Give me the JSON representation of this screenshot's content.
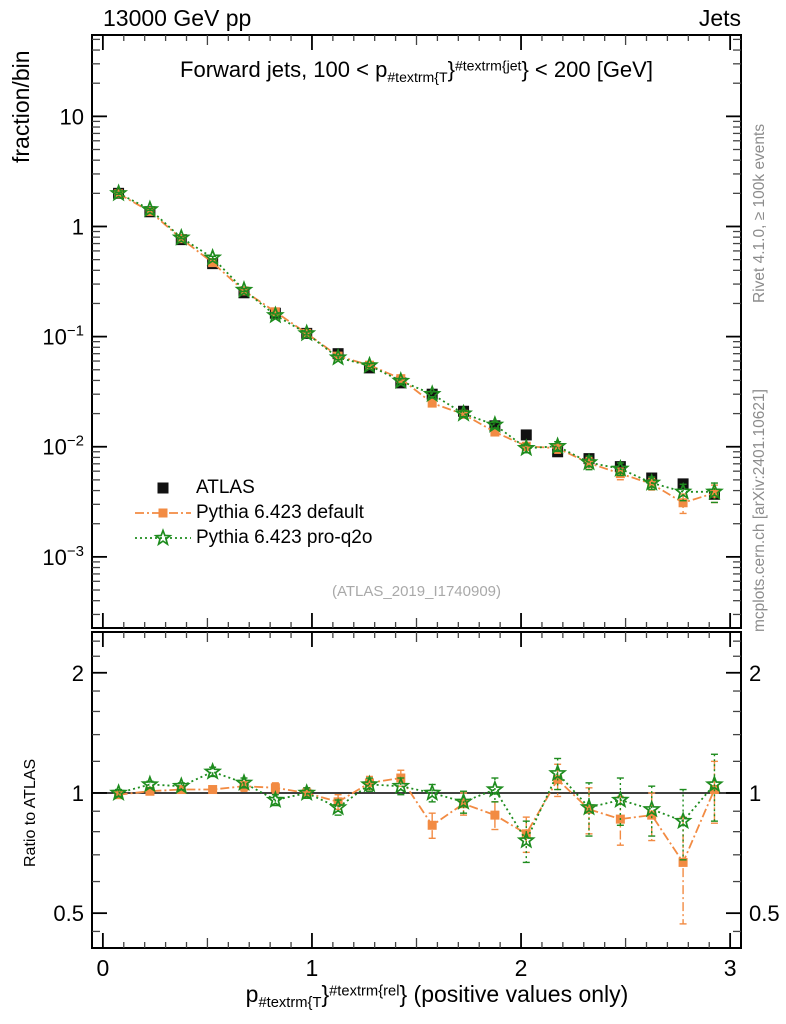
{
  "header": {
    "left": "13000 GeV pp",
    "right": "Jets"
  },
  "title": {
    "p1": "Forward jets, 100 < p",
    "sub": "#textrm{T",
    "b1": "}",
    "sup": "#textrm{jet",
    "b2": "}",
    "p2": " < 200 [GeV]"
  },
  "y_axis_title": "fraction/bin",
  "ratio_axis_title": "Ratio to ATLAS",
  "x_label": {
    "p1": "p",
    "sub": "#textrm{T",
    "b1": "}",
    "sup": "#textrm{rel",
    "b2": "}",
    "p2": " (positive values only)"
  },
  "watermark": "(ATLAS_2019_I1740909)",
  "side_notes": {
    "top": "Rivet 4.1.0, ≥ 100k events",
    "bottom": "mcplots.cern.ch [arXiv:2401.10621]"
  },
  "legend": [
    {
      "label": "ATLAS",
      "marker": "filled-square",
      "line": "none",
      "color": "#111111"
    },
    {
      "label": "Pythia 6.423 default",
      "marker": "filled-square",
      "line": "dash-dot",
      "color": "#f28b43"
    },
    {
      "label": "Pythia 6.423 pro-q2o",
      "marker": "open-star",
      "line": "dotted",
      "color": "#1e8c1e"
    }
  ],
  "colors": {
    "atlas": "#111111",
    "default": "#f28b43",
    "proq2o": "#1e8c1e",
    "frame": "#000000",
    "minor_tick": "#444444",
    "gray_text": "#8c8c8c",
    "watermark": "#a9a9a9"
  },
  "chart_data": {
    "type": "scatter",
    "description": "Two stacked panels: log-scale distribution (fraction/bin vs pT-rel) and log-scale ratio to ATLAS",
    "x": [
      0.075,
      0.225,
      0.375,
      0.525,
      0.675,
      0.825,
      0.975,
      1.125,
      1.275,
      1.425,
      1.575,
      1.725,
      1.875,
      2.025,
      2.175,
      2.325,
      2.475,
      2.625,
      2.775,
      2.925
    ],
    "x_axis": {
      "ticks": [
        0,
        1,
        2,
        3
      ],
      "tick_labels": [
        "0",
        "1",
        "2",
        "3"
      ],
      "range": [
        -0.052,
        3.052
      ],
      "minor_step": 0.1
    },
    "main_y_axis": {
      "scale": "log",
      "range": [
        0.000226,
        54.8
      ],
      "ticks": [
        {
          "v": 10,
          "base": "10",
          "exp": ""
        },
        {
          "v": 1,
          "base": "1",
          "exp": ""
        },
        {
          "v": 0.1,
          "base": "10",
          "exp": "−1"
        },
        {
          "v": 0.01,
          "base": "10",
          "exp": "−2"
        },
        {
          "v": 0.001,
          "base": "10",
          "exp": "−3"
        }
      ]
    },
    "ratio_y_axis": {
      "scale": "log",
      "range": [
        0.409,
        2.53
      ],
      "ticks": [
        {
          "v": 2,
          "label": "2"
        },
        {
          "v": 1,
          "label": "1"
        },
        {
          "v": 0.5,
          "label": "0.5"
        }
      ],
      "minor": [
        2.4,
        2.2,
        1.8,
        1.6,
        1.4,
        1.2,
        0.9,
        0.8,
        0.7,
        0.6,
        0.45
      ]
    },
    "series": [
      {
        "name": "ATLAS",
        "values": [
          2.0,
          1.36,
          0.76,
          0.46,
          0.25,
          0.163,
          0.107,
          0.07,
          0.052,
          0.038,
          0.03,
          0.021,
          0.0155,
          0.0128,
          0.009,
          0.0078,
          0.0066,
          0.0052,
          0.0046,
          0.0037
        ],
        "rel_err": [
          0.01,
          0.01,
          0.01,
          0.01,
          0.015,
          0.015,
          0.015,
          0.02,
          0.02,
          0.02,
          0.025,
          0.025,
          0.03,
          0.03,
          0.035,
          0.04,
          0.04,
          0.05,
          0.05,
          0.06
        ]
      },
      {
        "name": "Pythia 6.423 default",
        "values": [
          1.98,
          1.37,
          0.775,
          0.47,
          0.26,
          0.168,
          0.107,
          0.0665,
          0.055,
          0.0415,
          0.0249,
          0.0197,
          0.0136,
          0.0101,
          0.0097,
          0.0071,
          0.0057,
          0.0046,
          0.0031,
          0.0038
        ],
        "ratio": [
          0.99,
          1.01,
          1.02,
          1.02,
          1.04,
          1.03,
          1.0,
          0.95,
          1.06,
          1.09,
          0.83,
          0.94,
          0.88,
          0.79,
          1.08,
          0.91,
          0.86,
          0.88,
          0.67,
          1.02
        ],
        "ratio_err": [
          0.02,
          0.02,
          0.02,
          0.02,
          0.03,
          0.03,
          0.03,
          0.04,
          0.04,
          0.05,
          0.06,
          0.06,
          0.07,
          0.08,
          0.1,
          0.12,
          0.12,
          0.12,
          0.2,
          0.18
        ]
      },
      {
        "name": "Pythia 6.423 pro-q2o",
        "values": [
          2.0,
          1.43,
          0.79,
          0.52,
          0.265,
          0.156,
          0.107,
          0.0644,
          0.0546,
          0.0395,
          0.03,
          0.02,
          0.0158,
          0.0097,
          0.0101,
          0.0072,
          0.0063,
          0.0047,
          0.0039,
          0.0039
        ],
        "ratio": [
          1.0,
          1.05,
          1.04,
          1.13,
          1.06,
          0.96,
          1.0,
          0.92,
          1.05,
          1.04,
          1.0,
          0.95,
          1.02,
          0.76,
          1.12,
          0.92,
          0.96,
          0.91,
          0.85,
          1.05
        ],
        "ratio_err": [
          0.02,
          0.02,
          0.02,
          0.03,
          0.03,
          0.03,
          0.03,
          0.04,
          0.04,
          0.05,
          0.05,
          0.06,
          0.07,
          0.09,
          0.1,
          0.14,
          0.13,
          0.13,
          0.17,
          0.2
        ]
      }
    ]
  }
}
